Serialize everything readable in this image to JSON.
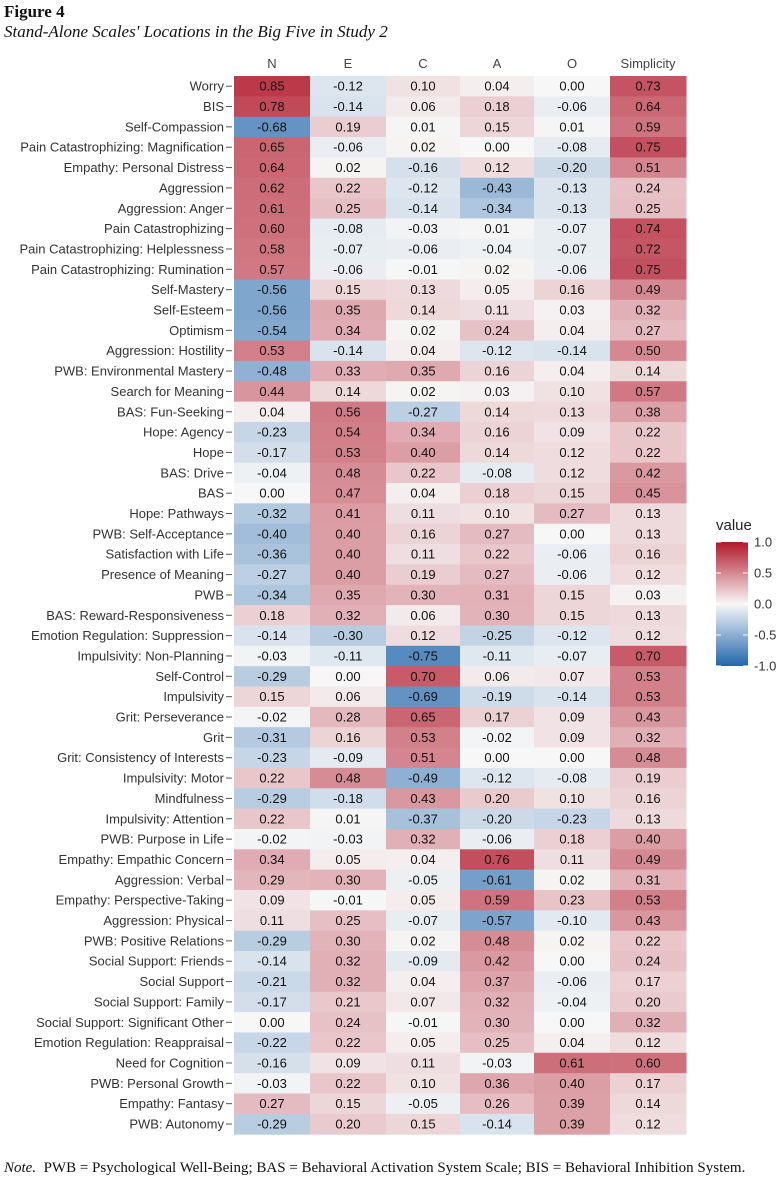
{
  "figure": {
    "label": "Figure 4",
    "title": "Stand-Alone Scales' Locations in the Big Five in Study 2"
  },
  "note": {
    "label": "Note.",
    "text": "PWB = Psychological Well-Being; BAS = Behavioral Activation System Scale; BIS = Behavioral Inhibition System."
  },
  "chart_data": {
    "type": "heatmap",
    "columns": [
      "N",
      "E",
      "C",
      "A",
      "O",
      "Simplicity"
    ],
    "rows": [
      {
        "label": "Worry",
        "values": [
          0.85,
          -0.12,
          0.1,
          0.04,
          0.0,
          0.73
        ]
      },
      {
        "label": "BIS",
        "values": [
          0.78,
          -0.14,
          0.06,
          0.18,
          -0.06,
          0.64
        ]
      },
      {
        "label": "Self-Compassion",
        "values": [
          -0.68,
          0.19,
          0.01,
          0.15,
          0.01,
          0.59
        ]
      },
      {
        "label": "Pain Catastrophizing: Magnification",
        "values": [
          0.65,
          -0.06,
          0.02,
          0.0,
          -0.08,
          0.75
        ]
      },
      {
        "label": "Empathy: Personal Distress",
        "values": [
          0.64,
          0.02,
          -0.16,
          0.12,
          -0.2,
          0.51
        ]
      },
      {
        "label": "Aggression",
        "values": [
          0.62,
          0.22,
          -0.12,
          -0.43,
          -0.13,
          0.24
        ]
      },
      {
        "label": "Aggression: Anger",
        "values": [
          0.61,
          0.25,
          -0.14,
          -0.34,
          -0.13,
          0.25
        ]
      },
      {
        "label": "Pain Catastrophizing",
        "values": [
          0.6,
          -0.08,
          -0.03,
          0.01,
          -0.07,
          0.74
        ]
      },
      {
        "label": "Pain Catastrophizing: Helplessness",
        "values": [
          0.58,
          -0.07,
          -0.06,
          -0.04,
          -0.07,
          0.72
        ]
      },
      {
        "label": "Pain Catastrophizing: Rumination",
        "values": [
          0.57,
          -0.06,
          -0.01,
          0.02,
          -0.06,
          0.75
        ]
      },
      {
        "label": "Self-Mastery",
        "values": [
          -0.56,
          0.15,
          0.13,
          0.05,
          0.16,
          0.49
        ]
      },
      {
        "label": "Self-Esteem",
        "values": [
          -0.56,
          0.35,
          0.14,
          0.11,
          0.03,
          0.32
        ]
      },
      {
        "label": "Optimism",
        "values": [
          -0.54,
          0.34,
          0.02,
          0.24,
          0.04,
          0.27
        ]
      },
      {
        "label": "Aggression: Hostility",
        "values": [
          0.53,
          -0.14,
          0.04,
          -0.12,
          -0.14,
          0.5
        ]
      },
      {
        "label": "PWB: Environmental Mastery",
        "values": [
          -0.48,
          0.33,
          0.35,
          0.16,
          0.04,
          0.14
        ]
      },
      {
        "label": "Search for Meaning",
        "values": [
          0.44,
          0.14,
          0.02,
          0.03,
          0.1,
          0.57
        ]
      },
      {
        "label": "BAS: Fun-Seeking",
        "values": [
          0.04,
          0.56,
          -0.27,
          0.14,
          0.13,
          0.38
        ]
      },
      {
        "label": "Hope: Agency",
        "values": [
          -0.23,
          0.54,
          0.34,
          0.16,
          0.09,
          0.22
        ]
      },
      {
        "label": "Hope",
        "values": [
          -0.17,
          0.53,
          0.4,
          0.14,
          0.12,
          0.22
        ]
      },
      {
        "label": "BAS: Drive",
        "values": [
          -0.04,
          0.48,
          0.22,
          -0.08,
          0.12,
          0.42
        ]
      },
      {
        "label": "BAS",
        "values": [
          0.0,
          0.47,
          0.04,
          0.18,
          0.15,
          0.45
        ]
      },
      {
        "label": "Hope: Pathways",
        "values": [
          -0.32,
          0.41,
          0.11,
          0.1,
          0.27,
          0.13
        ]
      },
      {
        "label": "PWB: Self-Acceptance",
        "values": [
          -0.4,
          0.4,
          0.16,
          0.27,
          0.0,
          0.13
        ]
      },
      {
        "label": "Satisfaction with Life",
        "values": [
          -0.36,
          0.4,
          0.11,
          0.22,
          -0.06,
          0.16
        ]
      },
      {
        "label": "Presence of Meaning",
        "values": [
          -0.27,
          0.4,
          0.19,
          0.27,
          -0.06,
          0.12
        ]
      },
      {
        "label": "PWB",
        "values": [
          -0.34,
          0.35,
          0.3,
          0.31,
          0.15,
          0.03
        ]
      },
      {
        "label": "BAS: Reward-Responsiveness",
        "values": [
          0.18,
          0.32,
          0.06,
          0.3,
          0.15,
          0.13
        ]
      },
      {
        "label": "Emotion Regulation: Suppression",
        "values": [
          -0.14,
          -0.3,
          0.12,
          -0.25,
          -0.12,
          0.12
        ]
      },
      {
        "label": "Impulsivity: Non-Planning",
        "values": [
          -0.03,
          -0.11,
          -0.75,
          -0.11,
          -0.07,
          0.7
        ]
      },
      {
        "label": "Self-Control",
        "values": [
          -0.29,
          0.0,
          0.7,
          0.06,
          0.07,
          0.53
        ]
      },
      {
        "label": "Impulsivity",
        "values": [
          0.15,
          0.06,
          -0.69,
          -0.19,
          -0.14,
          0.53
        ]
      },
      {
        "label": "Grit: Perseverance",
        "values": [
          -0.02,
          0.28,
          0.65,
          0.17,
          0.09,
          0.43
        ]
      },
      {
        "label": "Grit",
        "values": [
          -0.31,
          0.16,
          0.53,
          -0.02,
          0.09,
          0.32
        ]
      },
      {
        "label": "Grit: Consistency of Interests",
        "values": [
          -0.23,
          -0.09,
          0.51,
          0.0,
          0.0,
          0.48
        ]
      },
      {
        "label": "Impulsivity: Motor",
        "values": [
          0.22,
          0.48,
          -0.49,
          -0.12,
          -0.08,
          0.19
        ]
      },
      {
        "label": "Mindfulness",
        "values": [
          -0.29,
          -0.18,
          0.43,
          0.2,
          0.1,
          0.16
        ]
      },
      {
        "label": "Impulsivity: Attention",
        "values": [
          0.22,
          0.01,
          -0.37,
          -0.2,
          -0.23,
          0.13
        ]
      },
      {
        "label": "PWB: Purpose in Life",
        "values": [
          -0.02,
          -0.03,
          0.32,
          -0.06,
          0.18,
          0.4
        ]
      },
      {
        "label": "Empathy: Empathic Concern",
        "values": [
          0.34,
          0.05,
          0.04,
          0.76,
          0.11,
          0.49
        ]
      },
      {
        "label": "Aggression: Verbal",
        "values": [
          0.29,
          0.3,
          -0.05,
          -0.61,
          0.02,
          0.31
        ]
      },
      {
        "label": "Empathy: Perspective-Taking",
        "values": [
          0.09,
          -0.01,
          0.05,
          0.59,
          0.23,
          0.53
        ]
      },
      {
        "label": "Aggression: Physical",
        "values": [
          0.11,
          0.25,
          -0.07,
          -0.57,
          -0.1,
          0.43
        ]
      },
      {
        "label": "PWB: Positive Relations",
        "values": [
          -0.29,
          0.3,
          0.02,
          0.48,
          0.02,
          0.22
        ]
      },
      {
        "label": "Social Support: Friends",
        "values": [
          -0.14,
          0.32,
          -0.09,
          0.42,
          0.0,
          0.24
        ]
      },
      {
        "label": "Social Support",
        "values": [
          -0.21,
          0.32,
          0.04,
          0.37,
          -0.06,
          0.17
        ]
      },
      {
        "label": "Social Support: Family",
        "values": [
          -0.17,
          0.21,
          0.07,
          0.32,
          -0.04,
          0.2
        ]
      },
      {
        "label": "Social Support: Significant Other",
        "values": [
          0.0,
          0.24,
          -0.01,
          0.3,
          0.0,
          0.32
        ]
      },
      {
        "label": "Emotion Regulation: Reappraisal",
        "values": [
          -0.22,
          0.22,
          0.05,
          0.25,
          0.04,
          0.12
        ]
      },
      {
        "label": "Need for Cognition",
        "values": [
          -0.16,
          0.09,
          0.11,
          -0.03,
          0.61,
          0.6
        ]
      },
      {
        "label": "PWB: Personal Growth",
        "values": [
          -0.03,
          0.22,
          0.1,
          0.36,
          0.4,
          0.17
        ]
      },
      {
        "label": "Empathy: Fantasy",
        "values": [
          0.27,
          0.15,
          -0.05,
          0.26,
          0.39,
          0.14
        ]
      },
      {
        "label": "PWB: Autonomy",
        "values": [
          -0.29,
          0.2,
          0.15,
          -0.14,
          0.39,
          0.12
        ]
      }
    ],
    "legend": {
      "title": "value",
      "range": [
        -1.0,
        1.0
      ],
      "ticks": [
        "1.0",
        "0.5",
        "0.0",
        "-0.5",
        "-1.0"
      ],
      "tick_values": [
        1.0,
        0.5,
        0.0,
        -0.5,
        -1.0
      ],
      "position": "right"
    },
    "colors": {
      "low": "#2166ac",
      "mid": "#f7f7f7",
      "high": "#b2182b"
    }
  }
}
